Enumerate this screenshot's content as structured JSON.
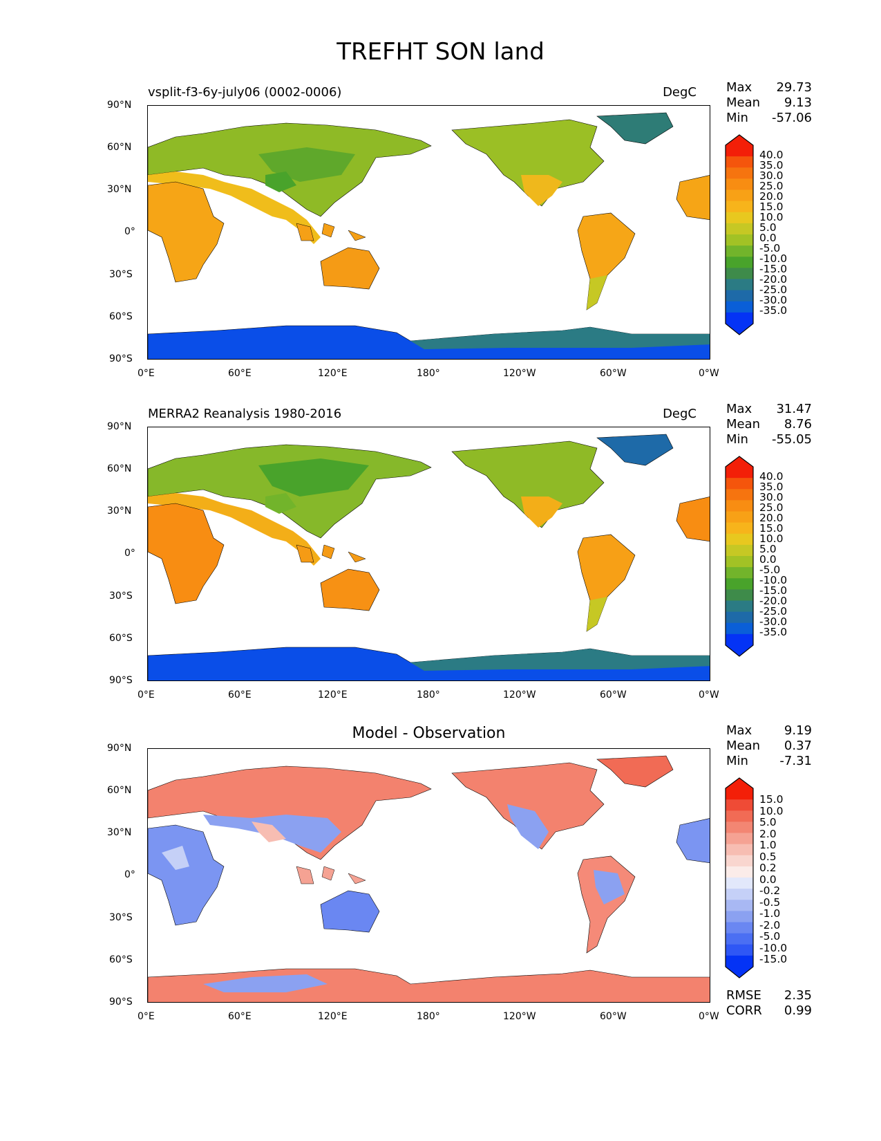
{
  "title": "TREFHT SON land",
  "colors": {
    "temp_scale": [
      "#0433f5",
      "#0a5fd8",
      "#1e6aa8",
      "#2b7b84",
      "#3e8b4a",
      "#49a32b",
      "#72b42b",
      "#a2c225",
      "#c6c824",
      "#e8c81f",
      "#f7b41b",
      "#f8a116",
      "#f88d12",
      "#f6740f",
      "#f5550c",
      "#f31f08"
    ],
    "diff_scale": [
      "#0433f5",
      "#2f57f5",
      "#4b6ff3",
      "#6a87f2",
      "#8ba1f1",
      "#a8b8f3",
      "#c5d0f7",
      "#e2e8fb",
      "#fbece9",
      "#f9d6cf",
      "#f7bdb2",
      "#f5a293",
      "#f38673",
      "#f16b55",
      "#ef4b36",
      "#f31f08"
    ],
    "ocean": "#ffffff",
    "coastline": "#000000"
  },
  "chart_data": [
    {
      "type": "heatmap",
      "panel_title_left": "vsplit-f3-6y-july06 (0002-0006)",
      "panel_title_right": "DegC",
      "stats": [
        {
          "label": "Max",
          "value": "29.73"
        },
        {
          "label": "Mean",
          "value": "9.13"
        },
        {
          "label": "Min",
          "value": "-57.06"
        }
      ],
      "colorbar_levels": [
        "40.0",
        "35.0",
        "30.0",
        "25.0",
        "20.0",
        "15.0",
        "10.0",
        "5.0",
        "0.0",
        "-5.0",
        "-10.0",
        "-15.0",
        "-20.0",
        "-25.0",
        "-30.0",
        "-35.0"
      ],
      "colorbar_type": "temp",
      "x_ticks": [
        "0°E",
        "60°E",
        "120°E",
        "180°",
        "120°W",
        "60°W",
        "0°W"
      ],
      "y_ticks": [
        "90°N",
        "60°N",
        "30°N",
        "0°",
        "30°S",
        "60°S",
        "90°S"
      ]
    },
    {
      "type": "heatmap",
      "panel_title_left": "MERRA2 Reanalysis 1980-2016",
      "panel_title_right": "DegC",
      "stats": [
        {
          "label": "Max",
          "value": "31.47"
        },
        {
          "label": "Mean",
          "value": "8.76"
        },
        {
          "label": "Min",
          "value": "-55.05"
        }
      ],
      "colorbar_levels": [
        "40.0",
        "35.0",
        "30.0",
        "25.0",
        "20.0",
        "15.0",
        "10.0",
        "5.0",
        "0.0",
        "-5.0",
        "-10.0",
        "-15.0",
        "-20.0",
        "-25.0",
        "-30.0",
        "-35.0"
      ],
      "colorbar_type": "temp",
      "x_ticks": [
        "0°E",
        "60°E",
        "120°E",
        "180°",
        "120°W",
        "60°W",
        "0°W"
      ],
      "y_ticks": [
        "90°N",
        "60°N",
        "30°N",
        "0°",
        "30°S",
        "60°S",
        "90°S"
      ]
    },
    {
      "type": "heatmap",
      "panel_title_center": "Model - Observation",
      "stats": [
        {
          "label": "Max",
          "value": "9.19"
        },
        {
          "label": "Mean",
          "value": "0.37"
        },
        {
          "label": "Min",
          "value": "-7.31"
        }
      ],
      "colorbar_levels": [
        "15.0",
        "10.0",
        "5.0",
        "2.0",
        "1.0",
        "0.5",
        "0.2",
        "0.0",
        "-0.2",
        "-0.5",
        "-1.0",
        "-2.0",
        "-5.0",
        "-10.0",
        "-15.0"
      ],
      "colorbar_type": "diff",
      "x_ticks": [
        "0°E",
        "60°E",
        "120°E",
        "180°",
        "120°W",
        "60°W",
        "0°W"
      ],
      "y_ticks": [
        "90°N",
        "60°N",
        "30°N",
        "0°",
        "30°S",
        "60°S",
        "90°S"
      ],
      "extra_stats": [
        {
          "label": "RMSE",
          "value": "2.35"
        },
        {
          "label": "CORR",
          "value": "0.99"
        }
      ]
    }
  ]
}
